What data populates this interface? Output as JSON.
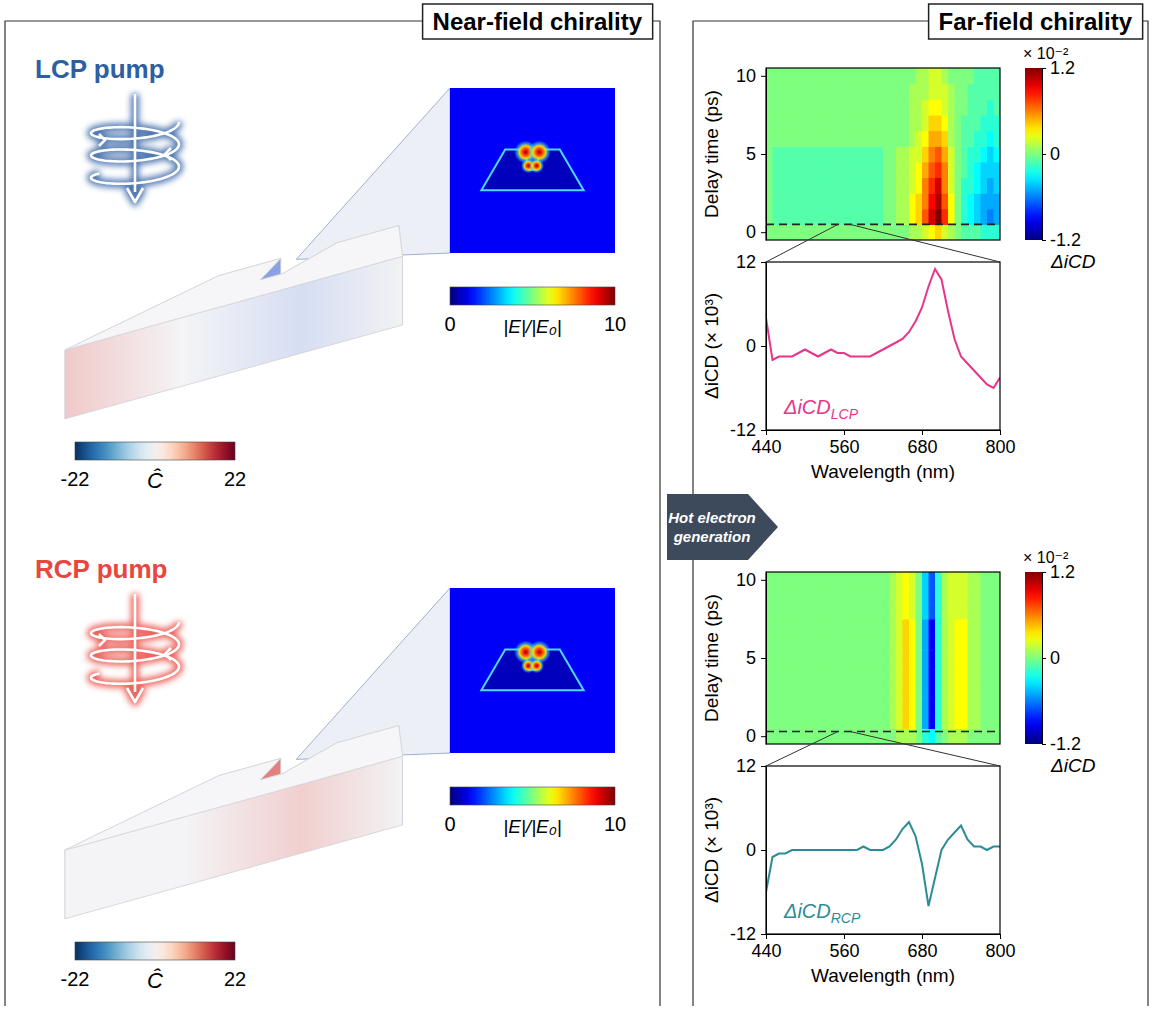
{
  "left_panel": {
    "title": "Near-field chirality",
    "sections": [
      {
        "label": "LCP pump",
        "color": "#2e5fa3",
        "chirality_colorbar": {
          "range": [
            -22,
            22
          ],
          "ticks": [
            -22,
            22
          ],
          "label": "Ĉ"
        },
        "field_colorbar": {
          "range": [
            0,
            10
          ],
          "ticks": [
            0,
            10
          ],
          "label": "|E|/|E₀|"
        }
      },
      {
        "label": "RCP pump",
        "color": "#e8463e",
        "chirality_colorbar": {
          "range": [
            -22,
            22
          ],
          "ticks": [
            -22,
            22
          ],
          "label": "Ĉ"
        },
        "field_colorbar": {
          "range": [
            0,
            10
          ],
          "ticks": [
            0,
            10
          ],
          "label": "|E|/|E₀|"
        }
      }
    ]
  },
  "arrow": {
    "text": "Hot electron generation"
  },
  "right_panel": {
    "title": "Far-field chirality"
  },
  "chart_data": [
    {
      "type": "heatmap",
      "x": [
        445,
        455,
        465,
        475,
        485,
        495,
        505,
        515,
        525,
        535,
        545,
        555,
        565,
        575,
        585,
        595,
        605,
        615,
        625,
        635,
        645,
        655,
        665,
        675,
        685,
        695,
        705,
        715,
        725,
        735,
        745,
        755,
        765,
        775,
        785,
        795
      ],
      "y": [
        0,
        1,
        2,
        3,
        4,
        5,
        6,
        7,
        8,
        9,
        10
      ],
      "z": [
        [
          0,
          0,
          0,
          0,
          0,
          0,
          0,
          0,
          0,
          0,
          0,
          0,
          0,
          0,
          0,
          0,
          0,
          0,
          0,
          0,
          0,
          0,
          0.1,
          0.1,
          0.2,
          0.3,
          0.4,
          0.2,
          0.1,
          0,
          -0.1,
          -0.1,
          -0.1,
          -0.2,
          -0.2,
          -0.2
        ],
        [
          0,
          -0.1,
          -0.1,
          -0.1,
          -0.1,
          -0.1,
          -0.1,
          -0.1,
          -0.1,
          -0.1,
          -0.1,
          -0.1,
          -0.1,
          -0.1,
          -0.1,
          -0.1,
          -0.1,
          -0.1,
          0,
          0,
          0.1,
          0.1,
          0.3,
          0.4,
          0.7,
          1.0,
          1.2,
          0.8,
          0.3,
          0,
          -0.2,
          -0.3,
          -0.4,
          -0.5,
          -0.6,
          -0.5
        ],
        [
          0,
          -0.1,
          -0.1,
          -0.1,
          -0.1,
          -0.1,
          -0.1,
          -0.1,
          -0.1,
          -0.1,
          -0.1,
          -0.1,
          -0.1,
          -0.1,
          -0.1,
          -0.1,
          -0.1,
          -0.1,
          0,
          0,
          0.1,
          0.1,
          0.3,
          0.4,
          0.6,
          0.9,
          1.1,
          0.7,
          0.3,
          0,
          -0.2,
          -0.3,
          -0.4,
          -0.5,
          -0.5,
          -0.5
        ],
        [
          0,
          -0.1,
          -0.1,
          -0.1,
          -0.1,
          -0.1,
          -0.1,
          -0.1,
          -0.1,
          -0.1,
          -0.1,
          -0.1,
          -0.1,
          -0.1,
          -0.1,
          -0.1,
          -0.1,
          -0.1,
          0,
          0,
          0.1,
          0.1,
          0.2,
          0.3,
          0.6,
          0.8,
          1.0,
          0.6,
          0.2,
          0,
          -0.2,
          -0.2,
          -0.3,
          -0.4,
          -0.5,
          -0.4
        ],
        [
          0,
          -0.1,
          -0.1,
          -0.1,
          -0.1,
          -0.1,
          -0.1,
          -0.1,
          -0.1,
          -0.1,
          -0.1,
          -0.1,
          -0.1,
          -0.1,
          -0.1,
          -0.1,
          -0.1,
          -0.1,
          0,
          0,
          0.1,
          0.1,
          0.2,
          0.3,
          0.5,
          0.7,
          0.8,
          0.6,
          0.2,
          0,
          -0.1,
          -0.2,
          -0.3,
          -0.4,
          -0.4,
          -0.4
        ],
        [
          0,
          -0.1,
          -0.1,
          -0.1,
          -0.1,
          -0.1,
          -0.1,
          -0.1,
          -0.1,
          -0.1,
          -0.1,
          -0.1,
          -0.1,
          -0.1,
          -0.1,
          -0.1,
          -0.1,
          -0.1,
          0,
          0,
          0.1,
          0.1,
          0.2,
          0.2,
          0.4,
          0.6,
          0.7,
          0.5,
          0.2,
          0,
          -0.1,
          -0.2,
          -0.2,
          -0.3,
          -0.4,
          -0.3
        ],
        [
          0,
          0,
          0,
          0,
          0,
          0,
          0,
          0,
          0,
          0,
          0,
          0,
          0,
          0,
          0,
          0,
          0,
          0,
          0,
          0,
          0,
          0,
          0.1,
          0.2,
          0.3,
          0.5,
          0.5,
          0.4,
          0.1,
          0,
          -0.1,
          -0.1,
          -0.2,
          -0.2,
          -0.3,
          -0.2
        ],
        [
          0,
          0,
          0,
          0,
          0,
          0,
          0,
          0,
          0,
          0,
          0,
          0,
          0,
          0,
          0,
          0,
          0,
          0,
          0,
          0,
          0,
          0,
          0.1,
          0.1,
          0.2,
          0.4,
          0.4,
          0.3,
          0.1,
          0,
          -0.1,
          -0.1,
          -0.1,
          -0.2,
          -0.2,
          -0.2
        ],
        [
          0,
          0,
          0,
          0,
          0,
          0,
          0,
          0,
          0,
          0,
          0,
          0,
          0,
          0,
          0,
          0,
          0,
          0,
          0,
          0,
          0,
          0,
          0.1,
          0.1,
          0.2,
          0.3,
          0.3,
          0.2,
          0.1,
          0,
          0,
          -0.1,
          -0.1,
          -0.1,
          -0.2,
          -0.1
        ],
        [
          0,
          0,
          0,
          0,
          0,
          0,
          0,
          0,
          0,
          0,
          0,
          0,
          0,
          0,
          0,
          0,
          0,
          0,
          0,
          0,
          0,
          0,
          0.1,
          0.1,
          0.1,
          0.2,
          0.2,
          0.2,
          0.1,
          0,
          0,
          -0.1,
          -0.1,
          -0.1,
          -0.1,
          -0.1
        ],
        [
          0,
          0,
          0,
          0,
          0,
          0,
          0,
          0,
          0,
          0,
          0,
          0,
          0,
          0,
          0,
          0,
          0,
          0,
          0,
          0,
          0,
          0,
          0,
          0.1,
          0.1,
          0.2,
          0.2,
          0.1,
          0,
          0,
          0,
          0,
          -0.1,
          -0.1,
          -0.1,
          -0.1
        ]
      ],
      "xlim": [
        440,
        800
      ],
      "ylim": [
        -0.5,
        10.5
      ],
      "yticks": [
        0,
        5,
        10
      ],
      "ylabel": "Delay time (ps)",
      "tick_labels": "y",
      "colorbar": {
        "range": [
          -1.2,
          1.2
        ],
        "ticks": [
          -1.2,
          0,
          1.2
        ],
        "multiplier": "× 10⁻²",
        "label": "ΔiCD"
      },
      "cut_delay": 0.5
    },
    {
      "type": "line",
      "x": [
        440,
        450,
        460,
        470,
        480,
        490,
        500,
        510,
        520,
        530,
        540,
        550,
        560,
        570,
        580,
        590,
        600,
        610,
        620,
        630,
        640,
        650,
        660,
        670,
        680,
        690,
        700,
        710,
        720,
        730,
        740,
        750,
        760,
        770,
        780,
        790,
        800
      ],
      "series": [
        {
          "name": "ΔiCD",
          "name_subscript": "LCP",
          "color": "#e8358a",
          "values": [
            4,
            -2,
            -1.5,
            -1.5,
            -1.5,
            -1,
            -0.5,
            -1,
            -1.5,
            -1,
            -0.5,
            -1,
            -1,
            -1.5,
            -1.5,
            -1.5,
            -1.5,
            -1,
            -0.5,
            0,
            0.5,
            1,
            2,
            3.5,
            5.5,
            8.5,
            11,
            9.5,
            5,
            1,
            -1.5,
            -2.5,
            -3.5,
            -4.5,
            -5.5,
            -6,
            -4.5
          ]
        }
      ],
      "xlim": [
        440,
        800
      ],
      "xticks": [
        440,
        560,
        680,
        800
      ],
      "ylim": [
        -12,
        12
      ],
      "yticks": [
        -12,
        0,
        12
      ],
      "xlabel": "Wavelength (nm)",
      "ylabel": "ΔiCD (× 10³)"
    },
    {
      "type": "heatmap",
      "x": [
        445,
        455,
        465,
        475,
        485,
        495,
        505,
        515,
        525,
        535,
        545,
        555,
        565,
        575,
        585,
        595,
        605,
        615,
        625,
        635,
        645,
        655,
        665,
        675,
        685,
        695,
        705,
        715,
        725,
        735,
        745,
        755,
        765,
        775,
        785,
        795
      ],
      "y": [
        0,
        1,
        2,
        3,
        4,
        5,
        6,
        7,
        8,
        9,
        10
      ],
      "z": [
        [
          0,
          0,
          0,
          0,
          0,
          0,
          0,
          0,
          0,
          0,
          0,
          0,
          0,
          0,
          0,
          0,
          0,
          0,
          0,
          0,
          0.1,
          0.1,
          0.1,
          0,
          -0.2,
          -0.3,
          -0.1,
          0,
          0.1,
          0.1,
          0.1,
          0,
          0,
          0,
          0,
          0
        ],
        [
          0,
          0,
          0,
          0,
          0,
          0,
          0,
          0,
          0,
          0,
          0,
          0,
          0,
          0,
          0,
          0,
          0,
          0,
          0,
          0.1,
          0.2,
          0.4,
          0.3,
          0,
          -0.5,
          -0.9,
          -0.2,
          0.1,
          0.2,
          0.3,
          0.3,
          0.1,
          0.1,
          0,
          0,
          0
        ],
        [
          0,
          0,
          0,
          0,
          0,
          0,
          0,
          0,
          0,
          0,
          0,
          0,
          0,
          0,
          0,
          0,
          0,
          0,
          0,
          0.1,
          0.2,
          0.4,
          0.3,
          0,
          -0.5,
          -0.9,
          -0.2,
          0.1,
          0.2,
          0.3,
          0.3,
          0.1,
          0.1,
          0,
          0,
          0
        ],
        [
          0,
          0,
          0,
          0,
          0,
          0,
          0,
          0,
          0,
          0,
          0,
          0,
          0,
          0,
          0,
          0,
          0,
          0,
          0,
          0.1,
          0.2,
          0.4,
          0.3,
          0,
          -0.5,
          -0.9,
          -0.2,
          0.1,
          0.2,
          0.3,
          0.3,
          0.1,
          0.1,
          0,
          0,
          0
        ],
        [
          0,
          0,
          0,
          0,
          0,
          0,
          0,
          0,
          0,
          0,
          0,
          0,
          0,
          0,
          0,
          0,
          0,
          0,
          0,
          0.1,
          0.2,
          0.4,
          0.3,
          0,
          -0.5,
          -0.9,
          -0.2,
          0.1,
          0.2,
          0.3,
          0.3,
          0.1,
          0.1,
          0,
          0,
          0
        ],
        [
          0,
          0,
          0,
          0,
          0,
          0,
          0,
          0,
          0,
          0,
          0,
          0,
          0,
          0,
          0,
          0,
          0,
          0,
          0,
          0.1,
          0.2,
          0.4,
          0.3,
          0,
          -0.5,
          -0.9,
          -0.2,
          0.1,
          0.2,
          0.3,
          0.3,
          0.1,
          0.1,
          0,
          0,
          0
        ],
        [
          0,
          0,
          0,
          0,
          0,
          0,
          0,
          0,
          0,
          0,
          0,
          0,
          0,
          0,
          0,
          0,
          0,
          0,
          0,
          0.1,
          0.2,
          0.4,
          0.3,
          0,
          -0.5,
          -0.9,
          -0.2,
          0.1,
          0.2,
          0.3,
          0.3,
          0.1,
          0.1,
          0,
          0,
          0
        ],
        [
          0,
          0,
          0,
          0,
          0,
          0,
          0,
          0,
          0,
          0,
          0,
          0,
          0,
          0,
          0,
          0,
          0,
          0,
          0,
          0.1,
          0.2,
          0.4,
          0.3,
          0,
          -0.5,
          -0.9,
          -0.2,
          0.1,
          0.2,
          0.3,
          0.3,
          0.1,
          0.1,
          0,
          0,
          0
        ],
        [
          0,
          0,
          0,
          0,
          0,
          0,
          0,
          0,
          0,
          0,
          0,
          0,
          0,
          0,
          0,
          0,
          0,
          0,
          0,
          0.1,
          0.2,
          0.3,
          0.2,
          0,
          -0.4,
          -0.7,
          -0.2,
          0.1,
          0.2,
          0.2,
          0.2,
          0.1,
          0.1,
          0,
          0,
          0
        ],
        [
          0,
          0,
          0,
          0,
          0,
          0,
          0,
          0,
          0,
          0,
          0,
          0,
          0,
          0,
          0,
          0,
          0,
          0,
          0,
          0.1,
          0.2,
          0.3,
          0.2,
          0,
          -0.4,
          -0.7,
          -0.2,
          0.1,
          0.2,
          0.2,
          0.2,
          0.1,
          0.1,
          0,
          0,
          0
        ],
        [
          0,
          0,
          0,
          0,
          0,
          0,
          0,
          0,
          0,
          0,
          0,
          0,
          0,
          0,
          0,
          0,
          0,
          0,
          0,
          0.1,
          0.2,
          0.3,
          0.2,
          0,
          -0.4,
          -0.7,
          -0.2,
          0.1,
          0.2,
          0.2,
          0.2,
          0.1,
          0.1,
          0,
          0,
          0
        ]
      ],
      "xlim": [
        440,
        800
      ],
      "ylim": [
        -0.5,
        10.5
      ],
      "yticks": [
        0,
        5,
        10
      ],
      "ylabel": "Delay time (ps)",
      "tick_labels": "y",
      "colorbar": {
        "range": [
          -1.2,
          1.2
        ],
        "ticks": [
          -1.2,
          0,
          1.2
        ],
        "multiplier": "× 10⁻²",
        "label": "ΔiCD"
      },
      "cut_delay": 0.3
    },
    {
      "type": "line",
      "x": [
        440,
        450,
        460,
        470,
        480,
        490,
        500,
        510,
        520,
        530,
        540,
        550,
        560,
        570,
        580,
        590,
        600,
        610,
        620,
        630,
        640,
        650,
        660,
        670,
        680,
        690,
        700,
        710,
        720,
        730,
        740,
        750,
        760,
        770,
        780,
        790,
        800
      ],
      "series": [
        {
          "name": "ΔiCD",
          "name_subscript": "RCP",
          "color": "#2b8c98",
          "values": [
            -6,
            -1,
            -0.5,
            -0.5,
            0,
            0,
            0,
            0,
            0,
            0,
            0,
            0,
            0,
            0,
            0,
            0.5,
            0,
            0,
            0,
            0.5,
            1.5,
            3,
            4,
            2,
            -2,
            -8,
            -4,
            0,
            1.5,
            2.5,
            3.5,
            1.5,
            0.5,
            0.5,
            0,
            0.5,
            0.5
          ]
        }
      ],
      "xlim": [
        440,
        800
      ],
      "xticks": [
        440,
        560,
        680,
        800
      ],
      "ylim": [
        -12,
        12
      ],
      "yticks": [
        -12,
        0,
        12
      ],
      "xlabel": "Wavelength (nm)",
      "ylabel": "ΔiCD (× 10³)"
    }
  ]
}
